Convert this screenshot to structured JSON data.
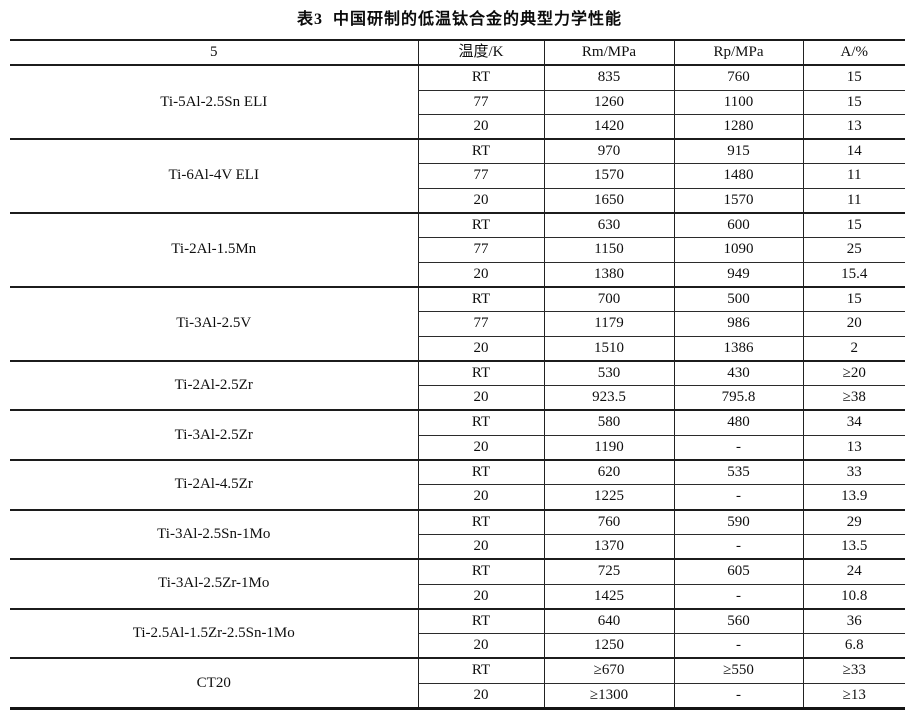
{
  "title": "表3  中国研制的低温钛合金的典型力学性能",
  "table": {
    "headers": [
      "5",
      "温度/K",
      "Rm/MPa",
      "Rp/MPa",
      "A/%"
    ],
    "groups": [
      {
        "alloy": "Ti-5Al-2.5Sn ELI",
        "rows": [
          [
            "RT",
            "835",
            "760",
            "15"
          ],
          [
            "77",
            "1260",
            "1100",
            "15"
          ],
          [
            "20",
            "1420",
            "1280",
            "13"
          ]
        ]
      },
      {
        "alloy": "Ti-6Al-4V ELI",
        "rows": [
          [
            "RT",
            "970",
            "915",
            "14"
          ],
          [
            "77",
            "1570",
            "1480",
            "11"
          ],
          [
            "20",
            "1650",
            "1570",
            "11"
          ]
        ]
      },
      {
        "alloy": "Ti-2Al-1.5Mn",
        "rows": [
          [
            "RT",
            "630",
            "600",
            "15"
          ],
          [
            "77",
            "1150",
            "1090",
            "25"
          ],
          [
            "20",
            "1380",
            "949",
            "15.4"
          ]
        ]
      },
      {
        "alloy": "Ti-3Al-2.5V",
        "rows": [
          [
            "RT",
            "700",
            "500",
            "15"
          ],
          [
            "77",
            "1179",
            "986",
            "20"
          ],
          [
            "20",
            "1510",
            "1386",
            "2"
          ]
        ]
      },
      {
        "alloy": "Ti-2Al-2.5Zr",
        "rows": [
          [
            "RT",
            "530",
            "430",
            "≥20"
          ],
          [
            "20",
            "923.5",
            "795.8",
            "≥38"
          ]
        ]
      },
      {
        "alloy": "Ti-3Al-2.5Zr",
        "rows": [
          [
            "RT",
            "580",
            "480",
            "34"
          ],
          [
            "20",
            "1190",
            "-",
            "13"
          ]
        ]
      },
      {
        "alloy": "Ti-2Al-4.5Zr",
        "rows": [
          [
            "RT",
            "620",
            "535",
            "33"
          ],
          [
            "20",
            "1225",
            "-",
            "13.9"
          ]
        ]
      },
      {
        "alloy": "Ti-3Al-2.5Sn-1Mo",
        "rows": [
          [
            "RT",
            "760",
            "590",
            "29"
          ],
          [
            "20",
            "1370",
            "-",
            "13.5"
          ]
        ]
      },
      {
        "alloy": "Ti-3Al-2.5Zr-1Mo",
        "rows": [
          [
            "RT",
            "725",
            "605",
            "24"
          ],
          [
            "20",
            "1425",
            "-",
            "10.8"
          ]
        ]
      },
      {
        "alloy": "Ti-2.5Al-1.5Zr-2.5Sn-1Mo",
        "rows": [
          [
            "RT",
            "640",
            "560",
            "36"
          ],
          [
            "20",
            "1250",
            "-",
            "6.8"
          ]
        ]
      },
      {
        "alloy": "CT20",
        "rows": [
          [
            "RT",
            "≥670",
            "≥550",
            "≥33"
          ],
          [
            "20",
            "≥1300",
            "-",
            "≥13"
          ]
        ]
      }
    ]
  }
}
